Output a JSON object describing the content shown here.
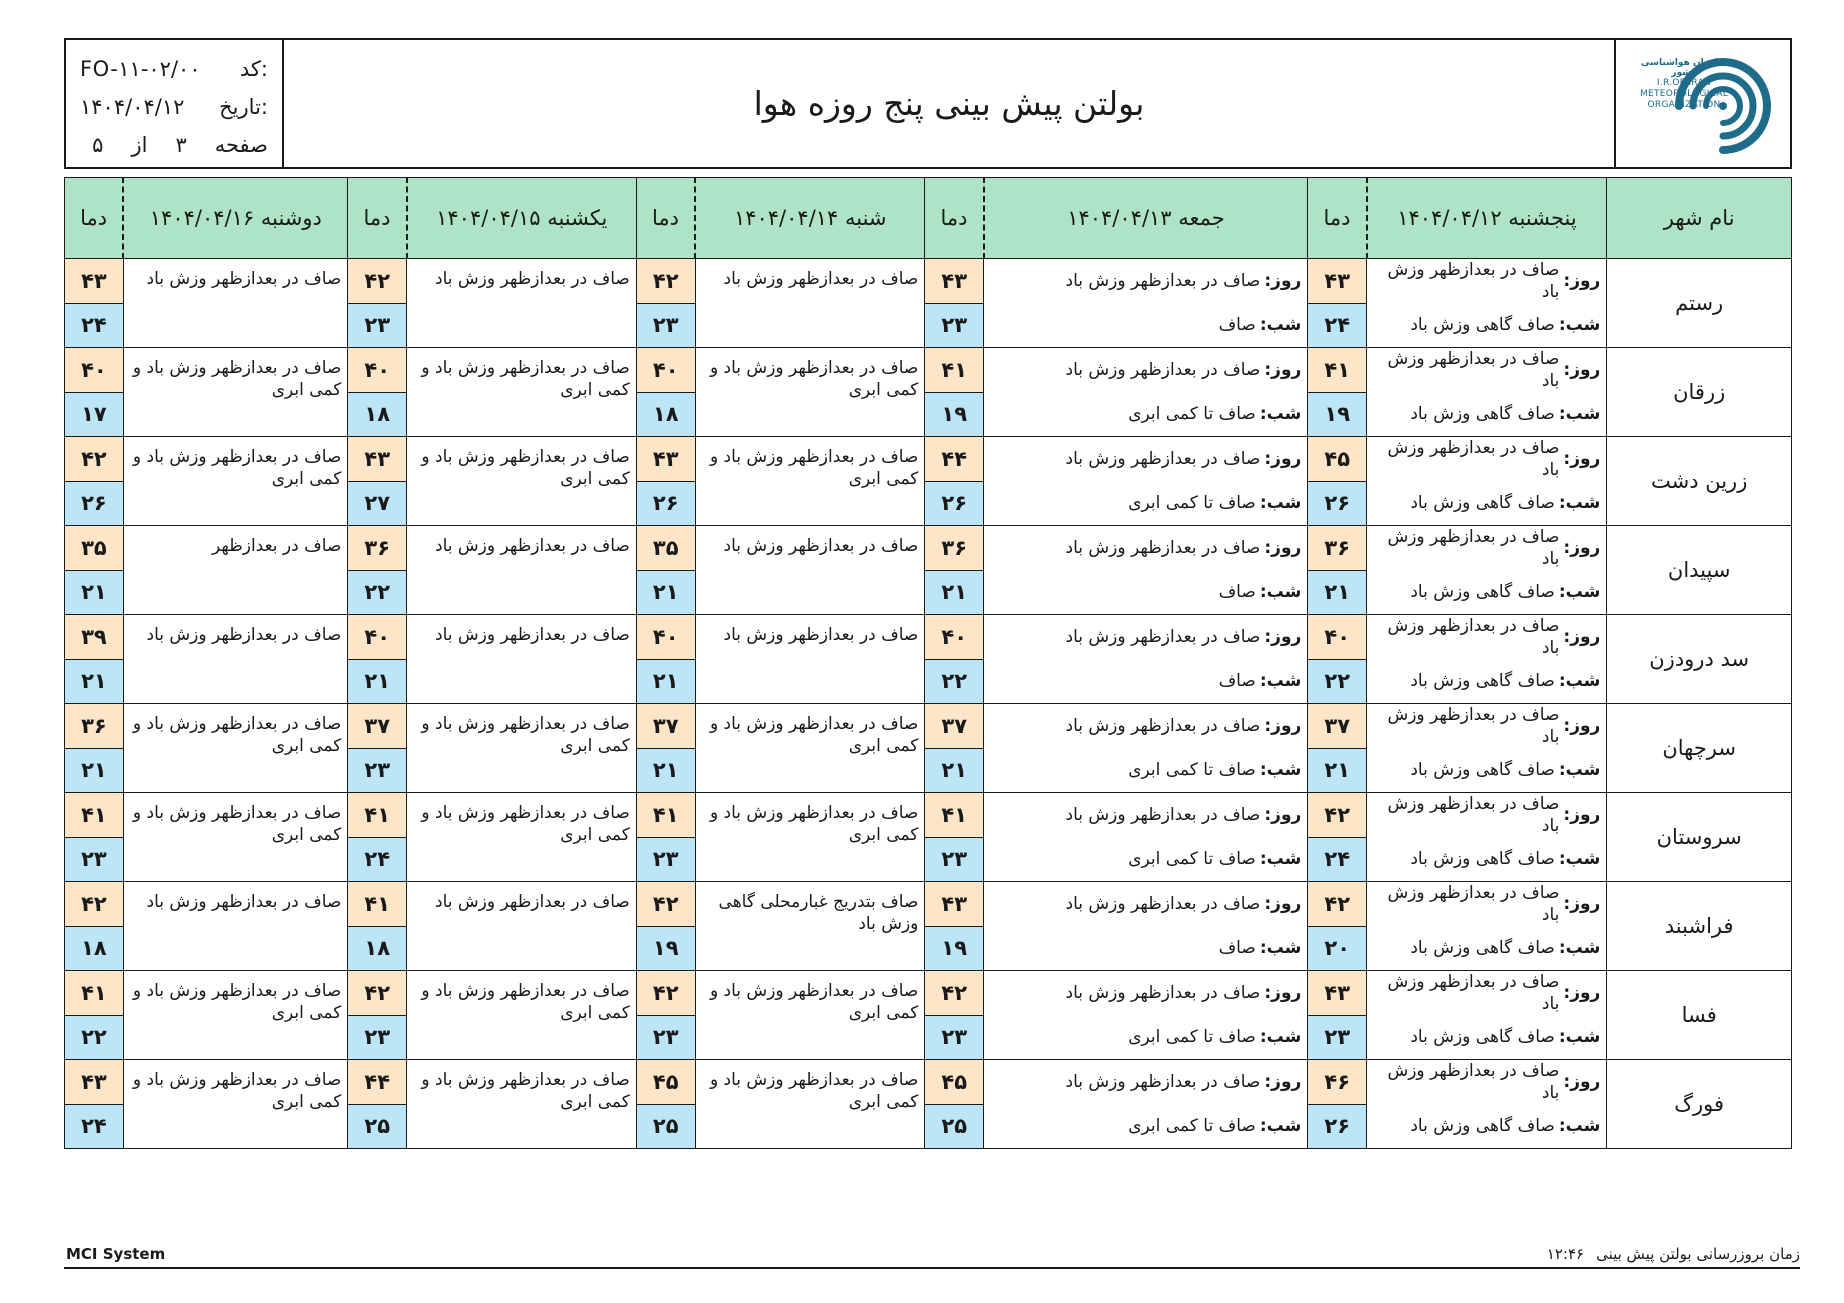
{
  "header": {
    "title": "بولتن پیش بینی پنج روزه هوا",
    "code_label": "کد:",
    "code_value": "FO-۱۱-۰۲/۰۰",
    "date_label": "تاریخ:",
    "date_value": "۱۴۰۴/۰۴/۱۲",
    "page_label": "صفحه",
    "page_current": "۳",
    "page_of": "از",
    "page_total": "۵",
    "logo_fa": "سازمان هواشناسی کشور",
    "logo_en_1": "I.R.OF IRAN",
    "logo_en_2": "METEOROLOGICAL",
    "logo_en_3": "ORGANIZATION",
    "logo_color": "#1e6b8a"
  },
  "table": {
    "city_header": "نام شهر",
    "temp_header": "دما",
    "day_label": "روز:",
    "night_label": "شب:",
    "header_bg": "#aee3c6",
    "max_bg": "#fde5c8",
    "min_bg": "#bde5f8",
    "days": [
      "پنجشنبه ۱۴۰۴/۰۴/۱۲",
      "جمعه ۱۴۰۴/۰۴/۱۳",
      "شنبه ۱۴۰۴/۰۴/۱۴",
      "یکشنبه ۱۴۰۴/۰۴/۱۵",
      "دوشنبه ۱۴۰۴/۰۴/۱۶"
    ],
    "rows": [
      {
        "city": "رستم",
        "d1": {
          "day": "صاف در بعدازظهر وزش باد",
          "night": "صاف گاهی وزش باد",
          "max": "۴۳",
          "min": "۲۴"
        },
        "d2": {
          "day": "صاف در بعدازظهر وزش باد",
          "night": "صاف",
          "max": "۴۳",
          "min": "۲۳"
        },
        "d3": {
          "desc": "صاف در بعدازظهر وزش باد",
          "max": "۴۲",
          "min": "۲۳"
        },
        "d4": {
          "desc": "صاف در بعدازظهر وزش باد",
          "max": "۴۲",
          "min": "۲۳"
        },
        "d5": {
          "desc": "صاف در بعدازظهر وزش باد",
          "max": "۴۳",
          "min": "۲۴"
        }
      },
      {
        "city": "زرقان",
        "d1": {
          "day": "صاف در بعدازظهر وزش باد",
          "night": "صاف گاهی وزش باد",
          "max": "۴۱",
          "min": "۱۹"
        },
        "d2": {
          "day": "صاف در بعدازظهر وزش باد",
          "night": "صاف تا کمی ابری",
          "max": "۴۱",
          "min": "۱۹"
        },
        "d3": {
          "desc": "صاف در بعدازظهر وزش باد و کمی ابری",
          "max": "۴۰",
          "min": "۱۸"
        },
        "d4": {
          "desc": "صاف در بعدازظهر وزش باد و کمی ابری",
          "max": "۴۰",
          "min": "۱۸"
        },
        "d5": {
          "desc": "صاف در بعدازظهر وزش باد و کمی ابری",
          "max": "۴۰",
          "min": "۱۷"
        }
      },
      {
        "city": "زرین دشت",
        "d1": {
          "day": "صاف در بعدازظهر وزش باد",
          "night": "صاف گاهی وزش باد",
          "max": "۴۵",
          "min": "۲۶"
        },
        "d2": {
          "day": "صاف در بعدازظهر وزش باد",
          "night": "صاف تا کمی ابری",
          "max": "۴۴",
          "min": "۲۶"
        },
        "d3": {
          "desc": "صاف در بعدازظهر وزش باد و کمی ابری",
          "max": "۴۳",
          "min": "۲۶"
        },
        "d4": {
          "desc": "صاف در بعدازظهر وزش باد و کمی ابری",
          "max": "۴۳",
          "min": "۲۷"
        },
        "d5": {
          "desc": "صاف در بعدازظهر وزش باد و کمی ابری",
          "max": "۴۲",
          "min": "۲۶"
        }
      },
      {
        "city": "سپیدان",
        "d1": {
          "day": "صاف در بعدازظهر وزش باد",
          "night": "صاف گاهی وزش باد",
          "max": "۳۶",
          "min": "۲۱"
        },
        "d2": {
          "day": "صاف در بعدازظهر وزش باد",
          "night": "صاف",
          "max": "۳۶",
          "min": "۲۱"
        },
        "d3": {
          "desc": "صاف در بعدازظهر وزش باد",
          "max": "۳۵",
          "min": "۲۱"
        },
        "d4": {
          "desc": "صاف در بعدازظهر وزش باد",
          "max": "۳۶",
          "min": "۲۲"
        },
        "d5": {
          "desc": "صاف در بعدازظهر",
          "max": "۳۵",
          "min": "۲۱"
        }
      },
      {
        "city": "سد درودزن",
        "d1": {
          "day": "صاف در بعدازظهر وزش باد",
          "night": "صاف گاهی وزش باد",
          "max": "۴۰",
          "min": "۲۲"
        },
        "d2": {
          "day": "صاف در بعدازظهر وزش باد",
          "night": "صاف",
          "max": "۴۰",
          "min": "۲۲"
        },
        "d3": {
          "desc": "صاف در بعدازظهر وزش باد",
          "max": "۴۰",
          "min": "۲۱"
        },
        "d4": {
          "desc": "صاف در بعدازظهر وزش باد",
          "max": "۴۰",
          "min": "۲۱"
        },
        "d5": {
          "desc": "صاف در بعدازظهر وزش باد",
          "max": "۳۹",
          "min": "۲۱"
        }
      },
      {
        "city": "سرچهان",
        "d1": {
          "day": "صاف در بعدازظهر وزش باد",
          "night": "صاف گاهی وزش باد",
          "max": "۳۷",
          "min": "۲۱"
        },
        "d2": {
          "day": "صاف در بعدازظهر وزش باد",
          "night": "صاف تا کمی ابری",
          "max": "۳۷",
          "min": "۲۱"
        },
        "d3": {
          "desc": "صاف در بعدازظهر وزش باد و کمی ابری",
          "max": "۳۷",
          "min": "۲۱"
        },
        "d4": {
          "desc": "صاف در بعدازظهر وزش باد و کمی ابری",
          "max": "۳۷",
          "min": "۲۳"
        },
        "d5": {
          "desc": "صاف در بعدازظهر وزش باد و کمی ابری",
          "max": "۳۶",
          "min": "۲۱"
        }
      },
      {
        "city": "سروستان",
        "d1": {
          "day": "صاف در بعدازظهر وزش باد",
          "night": "صاف گاهی وزش باد",
          "max": "۴۲",
          "min": "۲۴"
        },
        "d2": {
          "day": "صاف در بعدازظهر وزش باد",
          "night": "صاف تا کمی ابری",
          "max": "۴۱",
          "min": "۲۳"
        },
        "d3": {
          "desc": "صاف در بعدازظهر وزش باد و کمی ابری",
          "max": "۴۱",
          "min": "۲۳"
        },
        "d4": {
          "desc": "صاف در بعدازظهر وزش باد و کمی ابری",
          "max": "۴۱",
          "min": "۲۴"
        },
        "d5": {
          "desc": "صاف در بعدازظهر وزش باد و کمی ابری",
          "max": "۴۱",
          "min": "۲۳"
        }
      },
      {
        "city": "فراشبند",
        "d1": {
          "day": "صاف در بعدازظهر وزش باد",
          "night": "صاف گاهی وزش باد",
          "max": "۴۲",
          "min": "۲۰"
        },
        "d2": {
          "day": "صاف در بعدازظهر وزش باد",
          "night": "صاف",
          "max": "۴۳",
          "min": "۱۹"
        },
        "d3": {
          "desc": "صاف بتدریج غبارمحلی گاهی وزش باد",
          "max": "۴۲",
          "min": "۱۹"
        },
        "d4": {
          "desc": "صاف در بعدازظهر وزش باد",
          "max": "۴۱",
          "min": "۱۸"
        },
        "d5": {
          "desc": "صاف در بعدازظهر وزش باد",
          "max": "۴۲",
          "min": "۱۸"
        }
      },
      {
        "city": "فسا",
        "d1": {
          "day": "صاف در بعدازظهر وزش باد",
          "night": "صاف گاهی وزش باد",
          "max": "۴۳",
          "min": "۲۳"
        },
        "d2": {
          "day": "صاف در بعدازظهر وزش باد",
          "night": "صاف تا کمی ابری",
          "max": "۴۲",
          "min": "۲۳"
        },
        "d3": {
          "desc": "صاف در بعدازظهر وزش باد و کمی ابری",
          "max": "۴۲",
          "min": "۲۳"
        },
        "d4": {
          "desc": "صاف در بعدازظهر وزش باد و کمی ابری",
          "max": "۴۲",
          "min": "۲۳"
        },
        "d5": {
          "desc": "صاف در بعدازظهر وزش باد و کمی ابری",
          "max": "۴۱",
          "min": "۲۲"
        }
      },
      {
        "city": "فورگ",
        "d1": {
          "day": "صاف در بعدازظهر وزش باد",
          "night": "صاف گاهی وزش باد",
          "max": "۴۶",
          "min": "۲۶"
        },
        "d2": {
          "day": "صاف در بعدازظهر وزش باد",
          "night": "صاف تا کمی ابری",
          "max": "۴۵",
          "min": "۲۵"
        },
        "d3": {
          "desc": "صاف در بعدازظهر وزش باد و کمی ابری",
          "max": "۴۵",
          "min": "۲۵"
        },
        "d4": {
          "desc": "صاف در بعدازظهر وزش باد و کمی ابری",
          "max": "۴۴",
          "min": "۲۵"
        },
        "d5": {
          "desc": "صاف در بعدازظهر وزش باد و کمی ابری",
          "max": "۴۳",
          "min": "۲۴"
        }
      }
    ]
  },
  "footer": {
    "left": "MCI System",
    "right_label": "زمان بروزرسانی بولتن پیش بینی",
    "right_time": "۱۲:۴۶"
  }
}
